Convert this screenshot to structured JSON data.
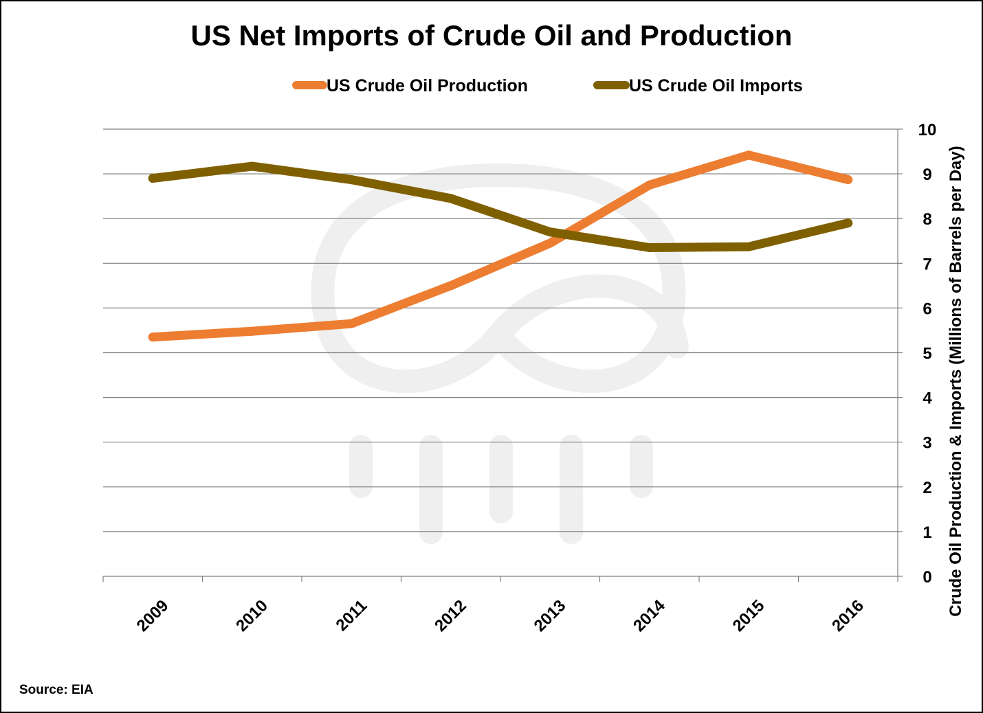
{
  "chart_data": {
    "type": "line",
    "title": "US Net Imports of Crude Oil and Production",
    "categories": [
      "2009",
      "2010",
      "2011",
      "2012",
      "2013",
      "2014",
      "2015",
      "2016"
    ],
    "series": [
      {
        "name": "US Crude Oil Production",
        "color": "#ed7d31",
        "values": [
          5.35,
          5.48,
          5.65,
          6.5,
          7.45,
          8.75,
          9.42,
          8.87
        ]
      },
      {
        "name": "US Crude Oil Imports",
        "color": "#7f6000",
        "values": [
          8.9,
          9.17,
          8.87,
          8.45,
          7.7,
          7.35,
          7.37,
          7.9
        ]
      }
    ],
    "y_ticks": [
      "0",
      "1",
      "2",
      "3",
      "4",
      "5",
      "6",
      "7",
      "8",
      "9",
      "10"
    ],
    "ylim": [
      0,
      10
    ],
    "ylabel": "Crude Oil Production & Imports (Millions of Barrels per Day)",
    "y_axis_side": "right",
    "grid": true,
    "legend_position": "top"
  },
  "source": "Source: EIA"
}
